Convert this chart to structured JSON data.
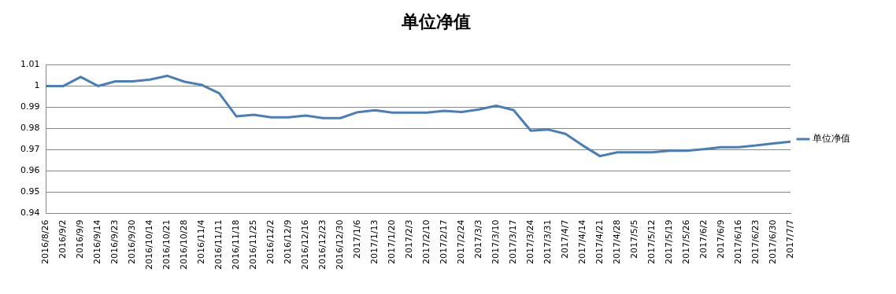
{
  "chart_data": {
    "type": "line",
    "title": "单位净值",
    "categories": [
      "2016/8/26",
      "2016/9/2",
      "2016/9/9",
      "2016/9/14",
      "2016/9/23",
      "2016/9/30",
      "2016/10/14",
      "2016/10/21",
      "2016/10/28",
      "2016/11/4",
      "2016/11/11",
      "2016/11/18",
      "2016/11/25",
      "2016/12/2",
      "2016/12/9",
      "2016/12/16",
      "2016/12/23",
      "2016/12/30",
      "2017/1/6",
      "2017/1/13",
      "2017/1/20",
      "2017/2/3",
      "2017/2/10",
      "2017/2/17",
      "2017/2/24",
      "2017/3/3",
      "2017/3/10",
      "2017/3/17",
      "2017/3/24",
      "2017/3/31",
      "2017/4/7",
      "2017/4/14",
      "2017/4/21",
      "2017/4/28",
      "2017/5/5",
      "2017/5/12",
      "2017/5/19",
      "2017/5/26",
      "2017/6/2",
      "2017/6/9",
      "2017/6/16",
      "2017/6/23",
      "2017/6/30",
      "2017/7/7"
    ],
    "series": [
      {
        "name": "单位净值",
        "color": "#4a7ebb",
        "values": [
          1.0,
          1.0,
          1.0043,
          1.0,
          1.0022,
          1.0022,
          1.003,
          1.0048,
          1.002,
          1.0005,
          0.9966,
          0.9857,
          0.9865,
          0.9853,
          0.9853,
          0.9861,
          0.9849,
          0.9849,
          0.9877,
          0.9886,
          0.9875,
          0.9875,
          0.9875,
          0.9883,
          0.9878,
          0.989,
          0.9907,
          0.9887,
          0.979,
          0.9795,
          0.9775,
          0.972,
          0.967,
          0.9688,
          0.9688,
          0.9688,
          0.9695,
          0.9695,
          0.9703,
          0.9712,
          0.9712,
          0.972,
          0.973,
          0.9738
        ]
      }
    ],
    "ylim": [
      0.94,
      1.01
    ],
    "yticks": [
      0.94,
      0.95,
      0.96,
      0.97,
      0.98,
      0.99,
      1,
      1.01
    ],
    "grid": "y",
    "legend": "right",
    "marker": "none",
    "line_style": "solid"
  }
}
